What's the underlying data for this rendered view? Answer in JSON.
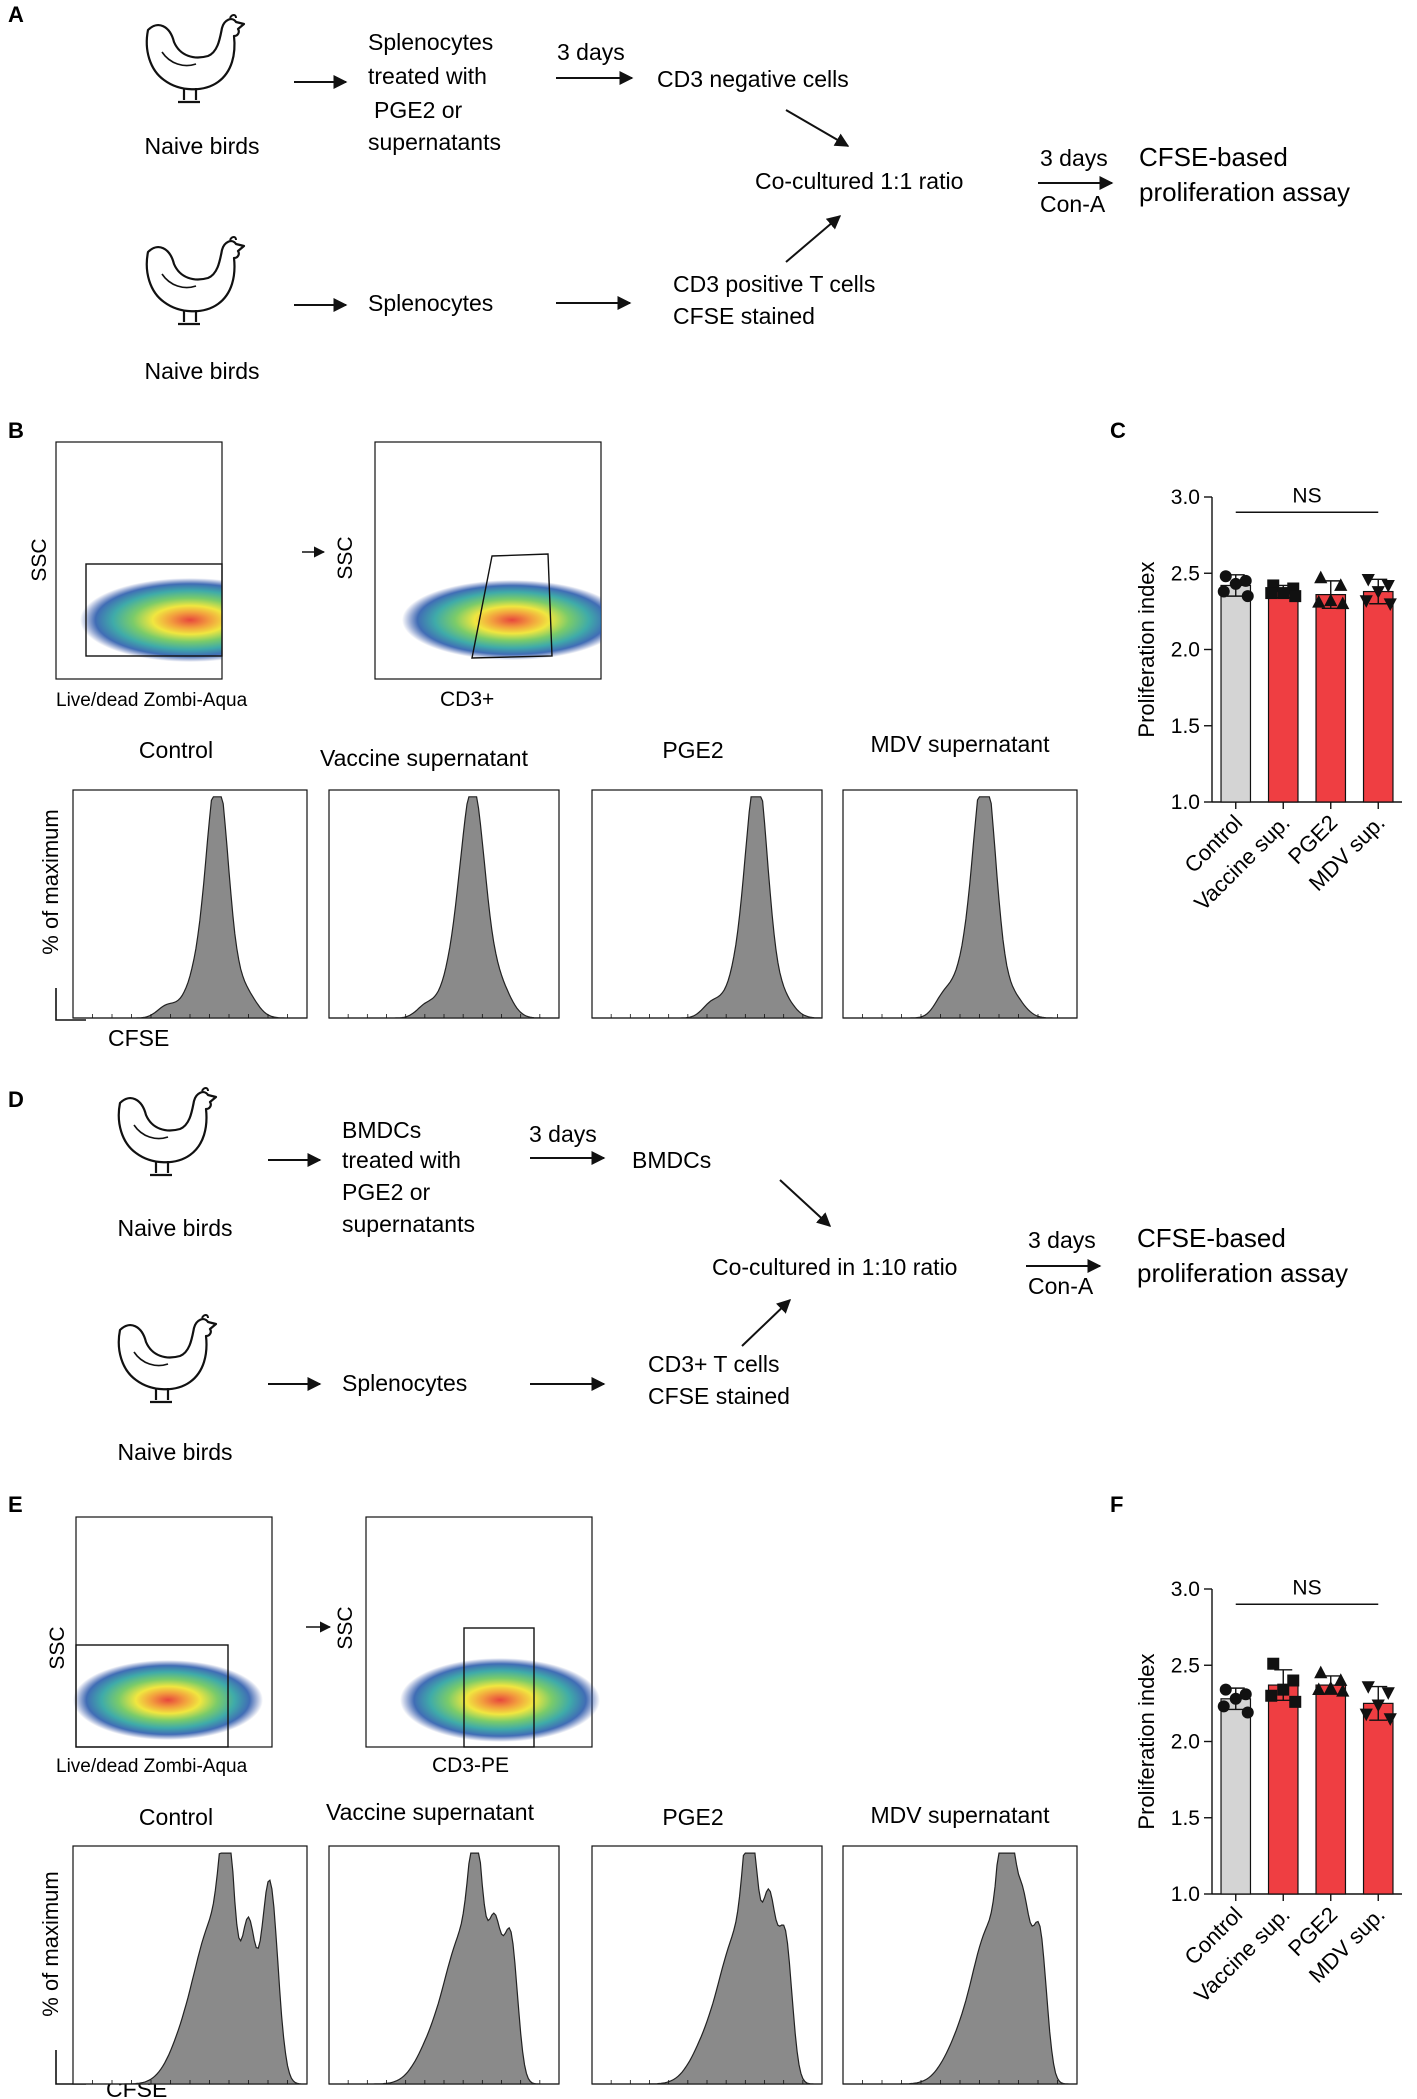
{
  "panels": {
    "a": "A",
    "b": "B",
    "c": "C",
    "d": "D",
    "e": "E",
    "f": "F"
  },
  "common": {
    "naive": "Naive birds",
    "three_days": "3 days",
    "con_a": "Con-A"
  },
  "panel_a": {
    "step1": [
      "Splenocytes",
      "treated with",
      "PGE2 or",
      "supernatants"
    ],
    "cd3neg": "CD3 negative  cells",
    "coculture": "Co-cultured 1:1 ratio",
    "splenocytes": "Splenocytes",
    "cd3pos": [
      "CD3 positive T cells",
      "CFSE stained"
    ],
    "assay": [
      "CFSE-based",
      "proliferation assay"
    ]
  },
  "panel_d": {
    "step1": [
      "BMDCs",
      "treated with",
      "PGE2 or",
      "supernatants"
    ],
    "bmdcs": "BMDCs",
    "coculture": "Co-cultured in 1:10 ratio",
    "splenocytes": "Splenocytes",
    "cd3pos": [
      "CD3+ T cells",
      "CFSE stained"
    ],
    "assay": [
      "CFSE-based",
      "proliferation assay"
    ]
  },
  "panel_b": {
    "ssc": "SSC",
    "xlabel1": "Live/dead Zombi-Aqua",
    "xlabel2": "CD3+",
    "hist_titles": [
      "Control",
      "Vaccine supernatant",
      "PGE2",
      "MDV supernatant"
    ],
    "ylabel": "% of maximum",
    "xlabel": "CFSE"
  },
  "panel_e": {
    "ssc": "SSC",
    "xlabel1": "Live/dead Zombi-Aqua",
    "xlabel2": "CD3-PE",
    "hist_titles": [
      "Control",
      "Vaccine supernatant",
      "PGE2",
      "MDV supernatant"
    ],
    "ylabel": "% of maximum",
    "xlabel": "CFSE"
  },
  "colors": {
    "control": "#d4d4d4",
    "treated": "#ef3e42",
    "hist": "#8a8a8a"
  },
  "chart_data": [
    {
      "id": "C",
      "type": "bar",
      "title": "",
      "ylabel": "Proliferation index",
      "ylim": [
        1.0,
        3.0
      ],
      "yticks": [
        "1.0",
        "1.5",
        "2.0",
        "2.5",
        "3.0"
      ],
      "categories": [
        "Control",
        "Vaccine sup.",
        "PGE2",
        "MDV sup."
      ],
      "values": [
        2.42,
        2.38,
        2.36,
        2.38
      ],
      "errors": [
        0.07,
        0.04,
        0.09,
        0.08
      ],
      "markers": [
        "circle",
        "square",
        "triangle",
        "triangle-down"
      ],
      "points": [
        [
          2.48,
          2.45,
          2.43,
          2.38,
          2.35
        ],
        [
          2.42,
          2.4,
          2.37,
          2.37,
          2.35
        ],
        [
          2.47,
          2.42,
          2.32,
          2.31,
          2.3
        ],
        [
          2.46,
          2.42,
          2.38,
          2.32,
          2.3
        ]
      ],
      "annotation": "NS"
    },
    {
      "id": "F",
      "type": "bar",
      "title": "",
      "ylabel": "Proliferation index",
      "ylim": [
        1.0,
        3.0
      ],
      "yticks": [
        "1.0",
        "1.5",
        "2.0",
        "2.5",
        "3.0"
      ],
      "categories": [
        "Control",
        "Vaccine sup.",
        "PGE2",
        "MDV sup."
      ],
      "values": [
        2.28,
        2.37,
        2.37,
        2.25
      ],
      "errors": [
        0.07,
        0.1,
        0.06,
        0.11
      ],
      "markers": [
        "circle",
        "square",
        "triangle",
        "triangle-down"
      ],
      "points": [
        [
          2.34,
          2.31,
          2.28,
          2.23,
          2.19
        ],
        [
          2.51,
          2.4,
          2.34,
          2.3,
          2.26
        ],
        [
          2.45,
          2.4,
          2.35,
          2.34,
          2.33
        ],
        [
          2.36,
          2.32,
          2.24,
          2.18,
          2.15
        ]
      ],
      "annotation": "NS"
    }
  ]
}
